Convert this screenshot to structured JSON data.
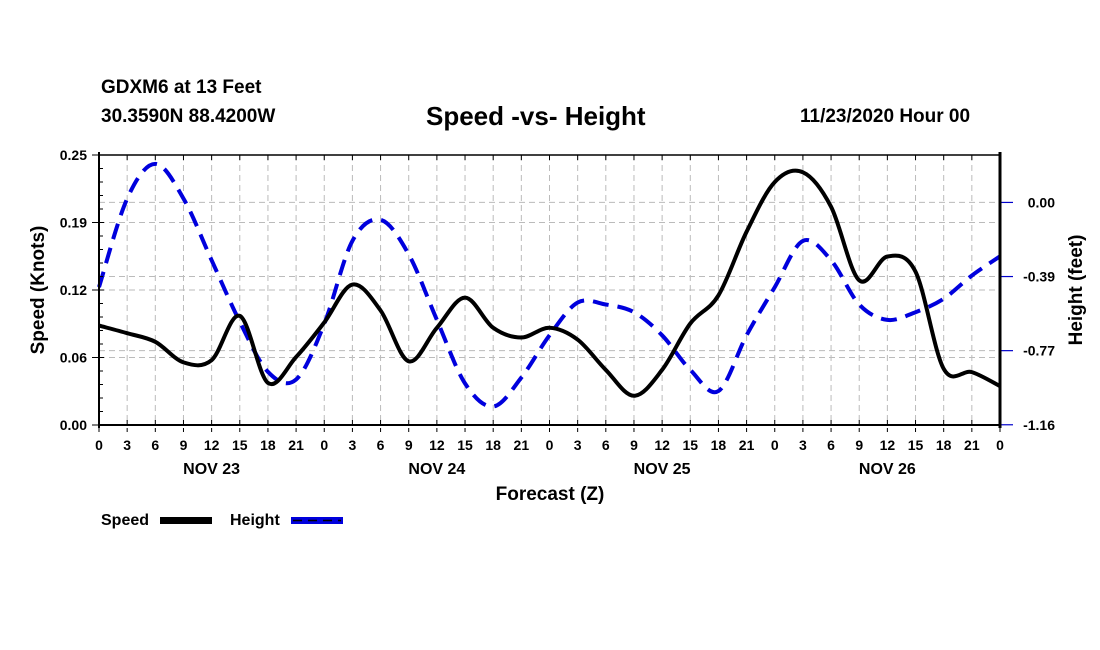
{
  "header": {
    "station": "GDXM6 at 13 Feet",
    "location": "30.3590N 88.4200W",
    "title": "Speed -vs- Height",
    "issued": "11/23/2020 Hour 00"
  },
  "chart_data": {
    "type": "line",
    "title": "Speed -vs- Height",
    "xlabel": "Forecast (Z)",
    "ylabel": "Speed (Knots)",
    "y2label": "Height (feet)",
    "grid": true,
    "legend_position": "bottom-left",
    "x_unit": "forecast hour",
    "xlim": [
      0,
      96
    ],
    "ylim": [
      0.0,
      0.25
    ],
    "y2lim": [
      -1.1562,
      0.2464
    ],
    "x_tick_labels": [
      "0",
      "3",
      "6",
      "9",
      "12",
      "15",
      "18",
      "21",
      "0",
      "3",
      "6",
      "9",
      "12",
      "15",
      "18",
      "21",
      "0",
      "3",
      "6",
      "9",
      "12",
      "15",
      "18",
      "21",
      "0",
      "3",
      "6",
      "9",
      "12",
      "15",
      "18",
      "21",
      "0"
    ],
    "date_labels": [
      {
        "hour": 12,
        "label": "NOV 23"
      },
      {
        "hour": 36,
        "label": "NOV 24"
      },
      {
        "hour": 60,
        "label": "NOV 25"
      },
      {
        "hour": 84,
        "label": "NOV 26"
      }
    ],
    "y_ticks": [
      {
        "value": 0.0,
        "label": "0.00"
      },
      {
        "value": 0.0625,
        "label": "0.06"
      },
      {
        "value": 0.125,
        "label": "0.12"
      },
      {
        "value": 0.1875,
        "label": "0.19"
      },
      {
        "value": 0.25,
        "label": "0.25"
      }
    ],
    "y2_ticks": [
      {
        "value": 0.0,
        "label": "0.00"
      },
      {
        "value": -0.385,
        "label": "-0.39"
      },
      {
        "value": -0.77,
        "label": "-0.77"
      },
      {
        "value": -1.155,
        "label": "-1.16"
      }
    ],
    "x": [
      0,
      3,
      6,
      9,
      12,
      15,
      18,
      21,
      24,
      27,
      30,
      33,
      36,
      39,
      42,
      45,
      48,
      51,
      54,
      57,
      60,
      63,
      66,
      69,
      72,
      75,
      78,
      81,
      84,
      87,
      90,
      93,
      96
    ],
    "series": [
      {
        "name": "Speed",
        "axis": "left",
        "color": "#000000",
        "style": "solid",
        "values": [
          0.092,
          0.085,
          0.077,
          0.058,
          0.06,
          0.101,
          0.039,
          0.063,
          0.095,
          0.13,
          0.106,
          0.059,
          0.09,
          0.118,
          0.09,
          0.081,
          0.09,
          0.079,
          0.051,
          0.027,
          0.051,
          0.094,
          0.12,
          0.179,
          0.225,
          0.234,
          0.202,
          0.134,
          0.156,
          0.142,
          0.052,
          0.049,
          0.036
        ]
      },
      {
        "name": "Height",
        "axis": "right",
        "color": "#0000dd",
        "style": "dashed",
        "values": [
          -0.44,
          0.02,
          0.2,
          0.02,
          -0.3,
          -0.62,
          -0.88,
          -0.92,
          -0.63,
          -0.2,
          -0.09,
          -0.27,
          -0.61,
          -0.94,
          -1.06,
          -0.91,
          -0.69,
          -0.52,
          -0.53,
          -0.57,
          -0.69,
          -0.87,
          -0.98,
          -0.69,
          -0.44,
          -0.2,
          -0.3,
          -0.53,
          -0.61,
          -0.57,
          -0.5,
          -0.38,
          -0.28
        ]
      }
    ]
  },
  "legend": [
    {
      "label": "Speed"
    },
    {
      "label": "Height"
    }
  ]
}
